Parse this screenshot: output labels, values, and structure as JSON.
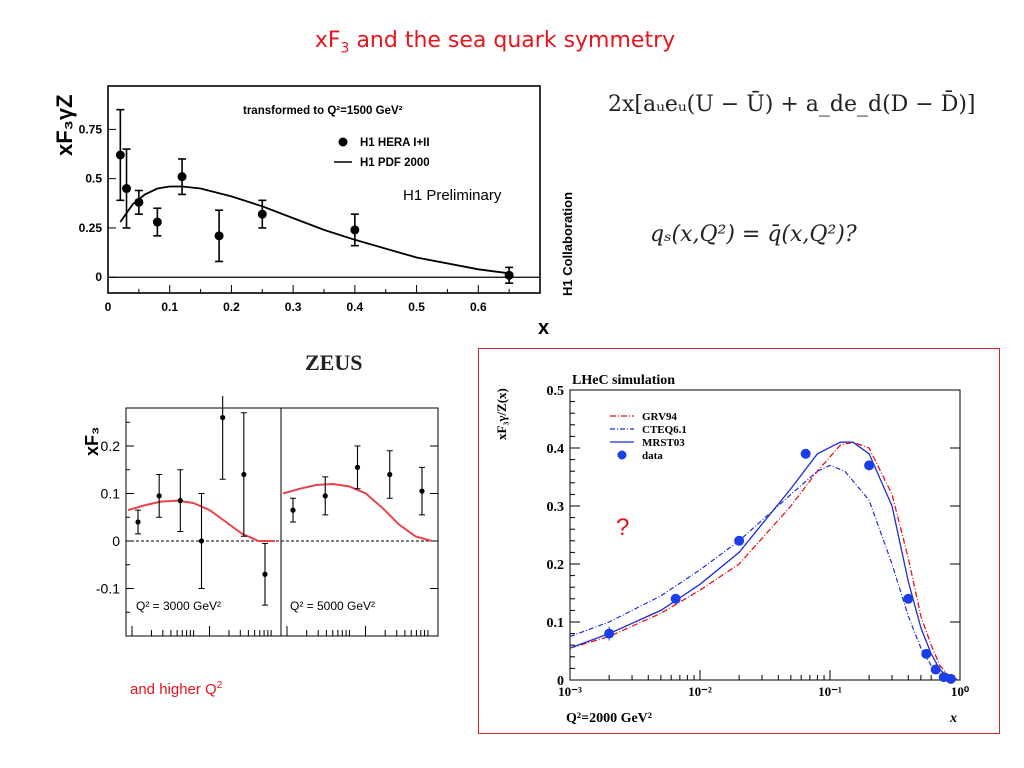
{
  "slide": {
    "title_pre": "xF",
    "title_sub": "3",
    "title_post": " and the sea quark symmetry",
    "formula1": "2x[aᵤeᵤ(U − Ū) + a_de_d(D − D̄)]",
    "formula2": "qₛ(x,Q²) = q̄(x,Q²)?",
    "note_pre": "and higher Q",
    "note_sup": "2",
    "question": "?"
  },
  "chart_data": [
    {
      "id": "h1",
      "type": "scatter",
      "title": "transformed to Q²=1500 GeV²",
      "ylabel": "xF₃γZ",
      "xlabel": "x",
      "side_label": "H1 Collaboration",
      "preliminary": "H1 Preliminary",
      "xlim": [
        0,
        0.7
      ],
      "ylim": [
        -0.08,
        0.97
      ],
      "xticks": [
        "0",
        "0.1",
        "0.2",
        "0.3",
        "0.4",
        "0.5",
        "0.6"
      ],
      "yticks": [
        "0",
        "0.25",
        "0.5",
        "0.75"
      ],
      "legend": [
        "H1 HERA I+II",
        "H1 PDF 2000"
      ],
      "series": [
        {
          "name": "H1 HERA I+II",
          "kind": "points",
          "x": [
            0.02,
            0.03,
            0.05,
            0.08,
            0.12,
            0.18,
            0.25,
            0.4,
            0.65
          ],
          "y": [
            0.62,
            0.45,
            0.38,
            0.28,
            0.51,
            0.21,
            0.32,
            0.24,
            0.01
          ],
          "err": [
            0.23,
            0.2,
            0.06,
            0.07,
            0.09,
            0.13,
            0.07,
            0.08,
            0.04
          ]
        },
        {
          "name": "H1 PDF 2000",
          "kind": "line",
          "x": [
            0.02,
            0.04,
            0.06,
            0.08,
            0.1,
            0.12,
            0.15,
            0.2,
            0.25,
            0.3,
            0.35,
            0.4,
            0.5,
            0.6,
            0.65
          ],
          "y": [
            0.28,
            0.37,
            0.42,
            0.45,
            0.46,
            0.46,
            0.45,
            0.41,
            0.36,
            0.3,
            0.24,
            0.19,
            0.1,
            0.04,
            0.02
          ]
        }
      ]
    },
    {
      "id": "zeus",
      "type": "scatter",
      "title": "ZEUS",
      "ylabel": "xF₃",
      "ylim": [
        -0.2,
        0.28
      ],
      "yticks": [
        "0.2",
        "0.1",
        "0",
        "-0.1"
      ],
      "panels": [
        {
          "label": "Q² = 3000 GeV²",
          "points": [
            {
              "y": 0.04,
              "err": 0.025
            },
            {
              "y": 0.095,
              "err": 0.045
            },
            {
              "y": 0.085,
              "err": 0.065
            },
            {
              "y": 0.0,
              "err": 0.1
            },
            {
              "y": 0.26,
              "err": 0.13
            },
            {
              "y": 0.14,
              "err": 0.13
            },
            {
              "y": -0.07,
              "err": 0.065
            }
          ],
          "curve": [
            0.065,
            0.075,
            0.083,
            0.085,
            0.08,
            0.065,
            0.04,
            0.015,
            0.0,
            0.0
          ]
        },
        {
          "label": "Q² = 5000 GeV²",
          "points": [
            {
              "y": 0.065,
              "err": 0.025
            },
            {
              "y": 0.095,
              "err": 0.04
            },
            {
              "y": 0.155,
              "err": 0.045
            },
            {
              "y": 0.14,
              "err": 0.05
            },
            {
              "y": 0.105,
              "err": 0.05
            }
          ],
          "curve": [
            0.1,
            0.11,
            0.118,
            0.12,
            0.115,
            0.1,
            0.07,
            0.035,
            0.01,
            0.0
          ]
        }
      ]
    },
    {
      "id": "lhec",
      "type": "line",
      "title": "LHeC simulation",
      "ylabel": "xF₃γ/Z(x)",
      "xlabel": "x",
      "corner_label": "Q²=2000 GeV²",
      "xscale": "log",
      "xlim": [
        0.001,
        1
      ],
      "ylim": [
        0,
        0.5
      ],
      "xticks": [
        "10⁻³",
        "10⁻²",
        "10⁻¹",
        "10⁰"
      ],
      "yticks": [
        "0",
        "0.1",
        "0.2",
        "0.3",
        "0.4",
        "0.5"
      ],
      "legend": [
        "GRV94",
        "CTEQ6.1",
        "MRST03",
        "data"
      ],
      "colors": {
        "GRV94": "#e8141c",
        "CTEQ6.1": "#1a2fd6",
        "MRST03": "#1a2fd6",
        "data": "#1a3ee8"
      },
      "series": [
        {
          "name": "GRV94",
          "x": [
            0.001,
            0.002,
            0.005,
            0.01,
            0.02,
            0.05,
            0.08,
            0.12,
            0.15,
            0.2,
            0.3,
            0.4,
            0.5,
            0.6,
            0.7,
            0.8,
            0.9,
            0.95
          ],
          "y": [
            0.055,
            0.075,
            0.115,
            0.155,
            0.2,
            0.3,
            0.36,
            0.405,
            0.41,
            0.4,
            0.32,
            0.21,
            0.11,
            0.06,
            0.025,
            0.01,
            0.003,
            0.001
          ]
        },
        {
          "name": "CTEQ6.1",
          "x": [
            0.001,
            0.002,
            0.005,
            0.01,
            0.02,
            0.05,
            0.08,
            0.1,
            0.13,
            0.2,
            0.3,
            0.4,
            0.5,
            0.6,
            0.7,
            0.8,
            0.9
          ],
          "y": [
            0.075,
            0.1,
            0.145,
            0.19,
            0.24,
            0.32,
            0.36,
            0.37,
            0.36,
            0.31,
            0.2,
            0.11,
            0.055,
            0.025,
            0.01,
            0.003,
            0.001
          ]
        },
        {
          "name": "MRST03",
          "x": [
            0.001,
            0.002,
            0.005,
            0.01,
            0.02,
            0.05,
            0.08,
            0.12,
            0.15,
            0.2,
            0.3,
            0.4,
            0.5,
            0.6,
            0.7,
            0.8,
            0.9,
            0.95
          ],
          "y": [
            0.055,
            0.08,
            0.12,
            0.165,
            0.22,
            0.33,
            0.39,
            0.41,
            0.41,
            0.39,
            0.3,
            0.17,
            0.09,
            0.045,
            0.018,
            0.006,
            0.002,
            0.001
          ]
        },
        {
          "name": "data",
          "kind": "points",
          "x": [
            0.002,
            0.0065,
            0.02,
            0.065,
            0.2,
            0.4,
            0.55,
            0.65,
            0.75,
            0.85
          ],
          "y": [
            0.08,
            0.14,
            0.24,
            0.39,
            0.37,
            0.14,
            0.045,
            0.018,
            0.005,
            0.002
          ],
          "err": [
            0.012,
            0.007,
            0.005,
            0.004,
            0.004,
            0.004,
            0.004,
            0.003,
            0.002,
            0.001
          ]
        }
      ]
    }
  ]
}
